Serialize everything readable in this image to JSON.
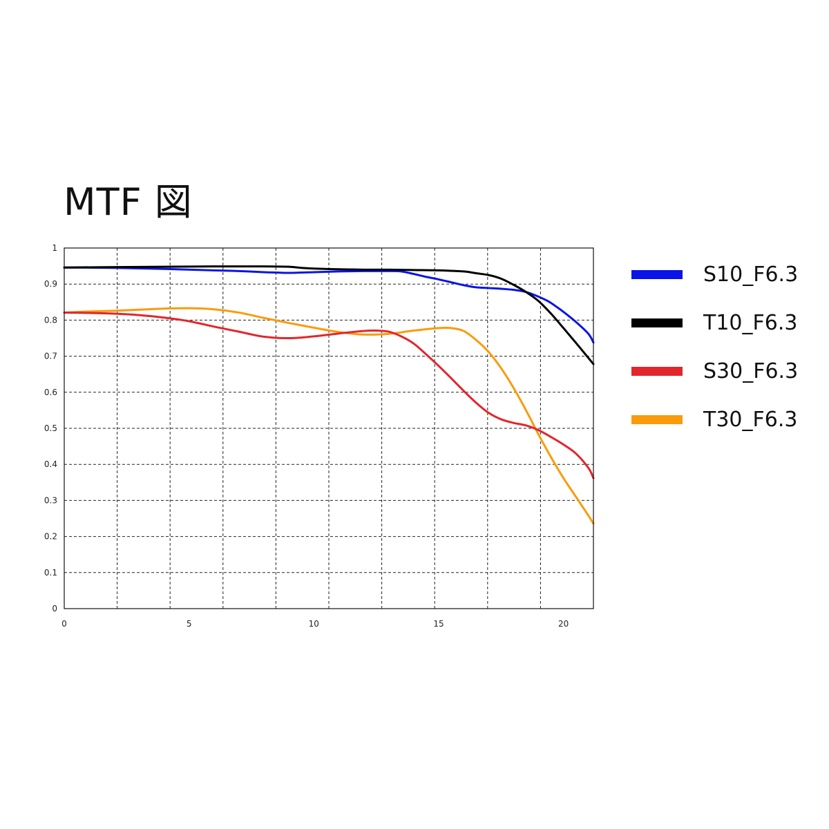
{
  "chart_data": {
    "type": "line",
    "title": "MTF 図",
    "xlabel": "",
    "ylabel": "",
    "xlim": [
      0,
      21.2
    ],
    "ylim": [
      0,
      1
    ],
    "x_ticks": [
      0,
      5,
      10,
      15,
      20
    ],
    "y_ticks": [
      "0",
      "0.1",
      "0.2",
      "0.3",
      "0.4",
      "0.5",
      "0.6",
      "0.7",
      "0.8",
      "0.9",
      "1"
    ],
    "y_tick_values": [
      0,
      0.1,
      0.2,
      0.3,
      0.4,
      0.5,
      0.6,
      0.7,
      0.8,
      0.9,
      1
    ],
    "x_grid": [
      2.12,
      4.24,
      6.36,
      8.48,
      10.6,
      12.72,
      14.84,
      16.96,
      19.08
    ],
    "grid": true,
    "grid_style": "dashed",
    "legend_position": "right",
    "series": [
      {
        "name": "S10_F6.3",
        "color": "#0a14e6",
        "points": [
          [
            0,
            0.946
          ],
          [
            2,
            0.945
          ],
          [
            4,
            0.942
          ],
          [
            6,
            0.938
          ],
          [
            7,
            0.936
          ],
          [
            8,
            0.933
          ],
          [
            8.5,
            0.932
          ],
          [
            9,
            0.931
          ],
          [
            10,
            0.933
          ],
          [
            11,
            0.935
          ],
          [
            12,
            0.936
          ],
          [
            13,
            0.936
          ],
          [
            13.5,
            0.935
          ],
          [
            14,
            0.928
          ],
          [
            14.5,
            0.92
          ],
          [
            15,
            0.913
          ],
          [
            15.5,
            0.905
          ],
          [
            16,
            0.897
          ],
          [
            16.5,
            0.891
          ],
          [
            17,
            0.889
          ],
          [
            17.5,
            0.887
          ],
          [
            18,
            0.884
          ],
          [
            18.5,
            0.878
          ],
          [
            19,
            0.865
          ],
          [
            19.4,
            0.852
          ],
          [
            19.7,
            0.838
          ],
          [
            20,
            0.823
          ],
          [
            20.5,
            0.795
          ],
          [
            21,
            0.762
          ],
          [
            21.2,
            0.738
          ]
        ]
      },
      {
        "name": "T10_F6.3",
        "color": "#000000",
        "points": [
          [
            0,
            0.946
          ],
          [
            2,
            0.947
          ],
          [
            4,
            0.948
          ],
          [
            6,
            0.949
          ],
          [
            8,
            0.949
          ],
          [
            9,
            0.948
          ],
          [
            9.5,
            0.945
          ],
          [
            10,
            0.943
          ],
          [
            11,
            0.941
          ],
          [
            12,
            0.94
          ],
          [
            13,
            0.94
          ],
          [
            14,
            0.939
          ],
          [
            15,
            0.938
          ],
          [
            16,
            0.935
          ],
          [
            16.5,
            0.93
          ],
          [
            17,
            0.925
          ],
          [
            17.5,
            0.915
          ],
          [
            18,
            0.898
          ],
          [
            18.5,
            0.878
          ],
          [
            19,
            0.853
          ],
          [
            19.5,
            0.818
          ],
          [
            20,
            0.778
          ],
          [
            20.5,
            0.737
          ],
          [
            21,
            0.695
          ],
          [
            21.2,
            0.678
          ]
        ]
      },
      {
        "name": "S30_F6.3",
        "color": "#e2262b",
        "points": [
          [
            0,
            0.821
          ],
          [
            1,
            0.82
          ],
          [
            2,
            0.818
          ],
          [
            3,
            0.814
          ],
          [
            4,
            0.807
          ],
          [
            5,
            0.797
          ],
          [
            6,
            0.782
          ],
          [
            7,
            0.768
          ],
          [
            8,
            0.754
          ],
          [
            9,
            0.75
          ],
          [
            10,
            0.755
          ],
          [
            11,
            0.763
          ],
          [
            12,
            0.77
          ],
          [
            12.5,
            0.771
          ],
          [
            13,
            0.768
          ],
          [
            13.5,
            0.755
          ],
          [
            14,
            0.735
          ],
          [
            14.5,
            0.705
          ],
          [
            15,
            0.673
          ],
          [
            15.5,
            0.639
          ],
          [
            16,
            0.604
          ],
          [
            16.5,
            0.571
          ],
          [
            17,
            0.543
          ],
          [
            17.5,
            0.525
          ],
          [
            18,
            0.515
          ],
          [
            18.5,
            0.508
          ],
          [
            19,
            0.495
          ],
          [
            19.5,
            0.476
          ],
          [
            20,
            0.455
          ],
          [
            20.5,
            0.43
          ],
          [
            21,
            0.39
          ],
          [
            21.2,
            0.362
          ]
        ]
      },
      {
        "name": "T30_F6.3",
        "color": "#fa9b0a",
        "points": [
          [
            0,
            0.821
          ],
          [
            1,
            0.824
          ],
          [
            2,
            0.826
          ],
          [
            3,
            0.829
          ],
          [
            4,
            0.832
          ],
          [
            5,
            0.833
          ],
          [
            6,
            0.83
          ],
          [
            7,
            0.821
          ],
          [
            8,
            0.806
          ],
          [
            9,
            0.792
          ],
          [
            10,
            0.779
          ],
          [
            11,
            0.767
          ],
          [
            12,
            0.76
          ],
          [
            13,
            0.762
          ],
          [
            14,
            0.771
          ],
          [
            15,
            0.778
          ],
          [
            15.5,
            0.778
          ],
          [
            16,
            0.77
          ],
          [
            16.5,
            0.745
          ],
          [
            17,
            0.712
          ],
          [
            17.5,
            0.667
          ],
          [
            18,
            0.612
          ],
          [
            18.5,
            0.55
          ],
          [
            19,
            0.483
          ],
          [
            19.5,
            0.42
          ],
          [
            20,
            0.362
          ],
          [
            20.5,
            0.31
          ],
          [
            21,
            0.258
          ],
          [
            21.2,
            0.236
          ]
        ]
      }
    ]
  }
}
